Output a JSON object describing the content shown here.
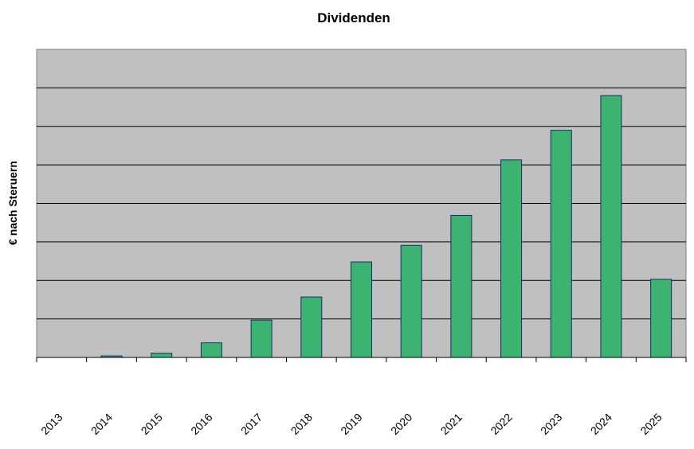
{
  "chart_data": {
    "type": "bar",
    "title": "Dividenden",
    "xlabel": "",
    "ylabel": "€ nach Steruern",
    "categories": [
      "2013",
      "2014",
      "2015",
      "2016",
      "2017",
      "2018",
      "2019",
      "2020",
      "2021",
      "2022",
      "2023",
      "2024",
      "2025"
    ],
    "values": [
      0,
      0.04,
      0.11,
      0.38,
      0.97,
      1.57,
      2.48,
      2.91,
      3.69,
      5.13,
      5.9,
      6.8,
      2.03
    ],
    "value_unit_note": "",
    "ylim": [
      0,
      8
    ],
    "y_tick_labels_shown": false,
    "grid": true,
    "legend": "none",
    "colors": {
      "bar_fill": "#3cb371",
      "bar_stroke": "#1a2a6c",
      "plot_bg": "#c0c0c0",
      "grid": "#000000"
    }
  }
}
